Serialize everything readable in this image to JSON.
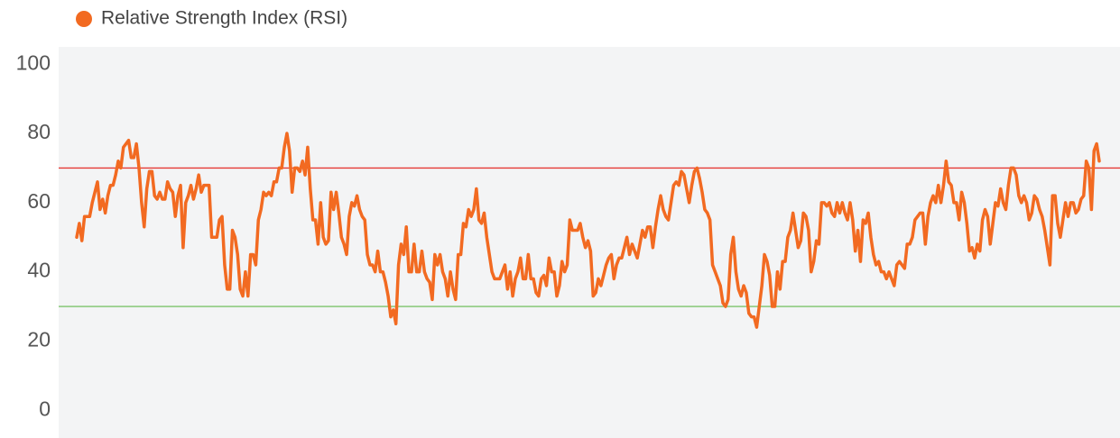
{
  "chart_data": {
    "type": "line",
    "series": [
      {
        "name": "Relative Strength Index (RSI)",
        "color": "#f26a21",
        "values": [
          50,
          54,
          49,
          56,
          56,
          56,
          60,
          63,
          66,
          58,
          61,
          57,
          62,
          65,
          65,
          68,
          72,
          70,
          76,
          77,
          78,
          73,
          73,
          77,
          70,
          60,
          53,
          64,
          69,
          69,
          62,
          61,
          63,
          61,
          61,
          66,
          64,
          63,
          56,
          62,
          65,
          47,
          60,
          62,
          65,
          61,
          64,
          68,
          63,
          65,
          65,
          65,
          50,
          50,
          50,
          55,
          56,
          42,
          35,
          35,
          52,
          50,
          45,
          35,
          33,
          40,
          33,
          45,
          45,
          42,
          55,
          58,
          63,
          62,
          63,
          62,
          66,
          66,
          70,
          70,
          76,
          80,
          75,
          63,
          70,
          70,
          69,
          72,
          68,
          76,
          64,
          55,
          55,
          48,
          60,
          50,
          48,
          49,
          63,
          58,
          63,
          57,
          50,
          48,
          45,
          56,
          60,
          59,
          62,
          58,
          56,
          55,
          45,
          42,
          42,
          40,
          46,
          40,
          40,
          37,
          33,
          27,
          29,
          25,
          42,
          48,
          45,
          53,
          40,
          40,
          48,
          40,
          40,
          46,
          40,
          38,
          37,
          32,
          45,
          42,
          45,
          40,
          38,
          33,
          40,
          35,
          32,
          45,
          45,
          54,
          53,
          58,
          56,
          58,
          64,
          55,
          54,
          57,
          50,
          45,
          40,
          38,
          38,
          38,
          40,
          42,
          35,
          40,
          33,
          38,
          40,
          44,
          38,
          38,
          45,
          38,
          38,
          34,
          33,
          38,
          39,
          36,
          44,
          40,
          40,
          33,
          36,
          43,
          40,
          42,
          55,
          52,
          52,
          52,
          54,
          50,
          47,
          49,
          46,
          33,
          34,
          38,
          36,
          39,
          42,
          44,
          45,
          38,
          42,
          44,
          44,
          47,
          50,
          45,
          48,
          46,
          44,
          48,
          52,
          50,
          53,
          53,
          47,
          53,
          58,
          62,
          58,
          56,
          55,
          60,
          65,
          66,
          65,
          69,
          68,
          64,
          60,
          65,
          69,
          70,
          67,
          63,
          58,
          57,
          55,
          42,
          40,
          38,
          36,
          31,
          30,
          32,
          45,
          50,
          40,
          35,
          33,
          36,
          34,
          28,
          27,
          27,
          24,
          30,
          36,
          45,
          43,
          39,
          30,
          30,
          40,
          35,
          43,
          43,
          50,
          52,
          57,
          52,
          47,
          49,
          57,
          56,
          52,
          40,
          43,
          49,
          48,
          60,
          60,
          59,
          60,
          57,
          56,
          60,
          57,
          60,
          57,
          55,
          60,
          55,
          46,
          52,
          43,
          55,
          54,
          57,
          50,
          45,
          42,
          43,
          40,
          40,
          38,
          40,
          38,
          36,
          42,
          43,
          42,
          41,
          48,
          48,
          50,
          55,
          56,
          57,
          57,
          48,
          56,
          60,
          62,
          60,
          65,
          60,
          65,
          72,
          66,
          65,
          60,
          60,
          55,
          63,
          60,
          54,
          46,
          47,
          44,
          48,
          46,
          55,
          58,
          56,
          48,
          54,
          60,
          59,
          64,
          60,
          58,
          65,
          70,
          70,
          68,
          62,
          60,
          62,
          60,
          55,
          57,
          62,
          61,
          58,
          56,
          52,
          47,
          42,
          62,
          62,
          54,
          50,
          55,
          60,
          56,
          60,
          60,
          57,
          58,
          61,
          62,
          72,
          70,
          58,
          75,
          77,
          72
        ]
      }
    ],
    "reference_lines": [
      {
        "value": 70,
        "color": "#e53935"
      },
      {
        "value": 30,
        "color": "#7cc36b"
      }
    ],
    "ylim": [
      -8,
      105
    ],
    "yticks": [
      0,
      20,
      40,
      60,
      80,
      100
    ],
    "grid": false
  }
}
